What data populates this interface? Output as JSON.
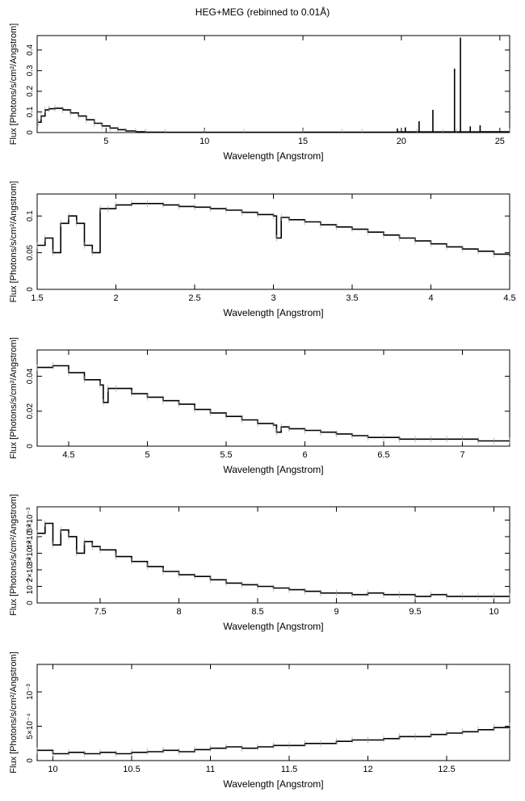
{
  "figure_title": "HEG+MEG (rebinned to 0.01Å)",
  "chart_data": [
    {
      "type": "line",
      "xlabel": "Wavelength [Angstrom]",
      "ylabel": "Flux [Photons/s/cm²/Angstrom]",
      "xlim": [
        1.5,
        25.5
      ],
      "ylim": [
        0,
        0.47
      ],
      "xticks": [
        5,
        10,
        15,
        20,
        25
      ],
      "xtick_labels": [
        "5",
        "10",
        "15",
        "20",
        "25"
      ],
      "yticks": [
        0,
        0.1,
        0.2,
        0.3,
        0.4
      ],
      "ytick_labels": [
        "0",
        "0.1",
        "0.2",
        "0.3",
        "0.4"
      ],
      "series": [
        {
          "x": [
            1.55,
            1.7,
            1.9,
            2.1,
            2.4,
            2.8,
            3.2,
            3.6,
            4.0,
            4.4,
            4.8,
            5.2,
            5.6,
            6.0,
            6.5,
            7.0,
            8.0,
            10,
            12,
            15,
            17,
            18,
            19.8,
            20.8,
            21.6,
            22.1,
            22.8,
            23.0,
            23.5,
            24.0,
            25.5
          ],
          "y": [
            0.05,
            0.08,
            0.11,
            0.115,
            0.118,
            0.11,
            0.095,
            0.08,
            0.062,
            0.045,
            0.032,
            0.022,
            0.014,
            0.008,
            0.004,
            0.002,
            0.001,
            0.001,
            0.001,
            0.002,
            0.002,
            0.002,
            0.003,
            0.003,
            0.003,
            0.003,
            0.003,
            0.003,
            0.003,
            0.004,
            0.004
          ]
        }
      ],
      "lines": [
        {
          "x": 19.8,
          "y": 0.02
        },
        {
          "x": 20.2,
          "y": 0.025
        },
        {
          "x": 20.9,
          "y": 0.055
        },
        {
          "x": 21.6,
          "y": 0.11
        },
        {
          "x": 22.7,
          "y": 0.31
        },
        {
          "x": 23.0,
          "y": 0.46
        },
        {
          "x": 23.5,
          "y": 0.03
        },
        {
          "x": 24.0,
          "y": 0.035
        }
      ]
    },
    {
      "type": "line",
      "xlabel": "Wavelength [Angstrom]",
      "ylabel": "Flux [Photons/s/cm²/Angstrom]",
      "xlim": [
        1.5,
        4.5
      ],
      "ylim": [
        0,
        0.13
      ],
      "xticks": [
        1.5,
        2,
        2.5,
        3,
        3.5,
        4,
        4.5
      ],
      "xtick_labels": [
        "1.5",
        "2",
        "2.5",
        "3",
        "3.5",
        "4",
        "4.5"
      ],
      "yticks": [
        0,
        0.05,
        0.1
      ],
      "ytick_labels": [
        "0",
        "0.05",
        "0.1"
      ],
      "series": [
        {
          "x": [
            1.5,
            1.55,
            1.6,
            1.65,
            1.7,
            1.75,
            1.8,
            1.85,
            1.9,
            1.95,
            2.0,
            2.1,
            2.2,
            2.3,
            2.4,
            2.5,
            2.6,
            2.7,
            2.8,
            2.9,
            3.0,
            3.02,
            3.05,
            3.1,
            3.2,
            3.3,
            3.4,
            3.5,
            3.6,
            3.7,
            3.8,
            3.9,
            4.0,
            4.1,
            4.2,
            4.3,
            4.4,
            4.5
          ],
          "y": [
            0.06,
            0.07,
            0.05,
            0.09,
            0.1,
            0.09,
            0.06,
            0.05,
            0.11,
            0.11,
            0.115,
            0.117,
            0.117,
            0.115,
            0.113,
            0.112,
            0.11,
            0.108,
            0.105,
            0.102,
            0.1,
            0.07,
            0.098,
            0.095,
            0.092,
            0.088,
            0.085,
            0.082,
            0.078,
            0.074,
            0.07,
            0.066,
            0.062,
            0.058,
            0.055,
            0.052,
            0.048,
            0.045
          ]
        }
      ]
    },
    {
      "type": "line",
      "xlabel": "Wavelength [Angstrom]",
      "ylabel": "Flux [Photons/s/cm²/Angstrom]",
      "xlim": [
        4.3,
        7.3
      ],
      "ylim": [
        0,
        0.055
      ],
      "xticks": [
        4.5,
        5,
        5.5,
        6,
        6.5,
        7
      ],
      "xtick_labels": [
        "4.5",
        "5",
        "5.5",
        "6",
        "6.5",
        "7"
      ],
      "yticks": [
        0,
        0.02,
        0.04
      ],
      "ytick_labels": [
        "0",
        "0.02",
        "0.04"
      ],
      "series": [
        {
          "x": [
            4.3,
            4.4,
            4.5,
            4.6,
            4.7,
            4.72,
            4.75,
            4.8,
            4.9,
            5.0,
            5.1,
            5.2,
            5.3,
            5.4,
            5.5,
            5.6,
            5.7,
            5.8,
            5.82,
            5.85,
            5.9,
            6.0,
            6.1,
            6.2,
            6.3,
            6.4,
            6.5,
            6.6,
            6.7,
            6.8,
            6.9,
            7.0,
            7.1,
            7.2,
            7.3
          ],
          "y": [
            0.045,
            0.046,
            0.042,
            0.038,
            0.035,
            0.025,
            0.033,
            0.033,
            0.03,
            0.028,
            0.026,
            0.024,
            0.021,
            0.019,
            0.017,
            0.015,
            0.013,
            0.012,
            0.008,
            0.011,
            0.01,
            0.009,
            0.008,
            0.007,
            0.006,
            0.005,
            0.005,
            0.004,
            0.004,
            0.004,
            0.004,
            0.004,
            0.003,
            0.003,
            0.003
          ]
        }
      ]
    },
    {
      "type": "line",
      "xlabel": "Wavelength [Angstrom]",
      "ylabel": "Flux [Photons/s/cm²/Angstrom]",
      "xlim": [
        7.1,
        10.1
      ],
      "ylim": [
        0,
        0.0058
      ],
      "xticks": [
        7.5,
        8,
        8.5,
        9,
        9.5,
        10
      ],
      "xtick_labels": [
        "7.5",
        "8",
        "8.5",
        "9",
        "9.5",
        "10"
      ],
      "yticks": [
        0,
        0.001,
        0.002,
        0.003,
        0.004,
        0.005
      ],
      "ytick_labels": [
        "0",
        "10⁻³",
        "2×10⁻³",
        "3×10⁻³",
        "4×10⁻³",
        "5×10⁻³"
      ],
      "series": [
        {
          "x": [
            7.1,
            7.15,
            7.2,
            7.25,
            7.3,
            7.35,
            7.4,
            7.45,
            7.5,
            7.6,
            7.7,
            7.8,
            7.9,
            8.0,
            8.1,
            8.2,
            8.3,
            8.4,
            8.5,
            8.6,
            8.7,
            8.8,
            8.9,
            9.0,
            9.1,
            9.2,
            9.3,
            9.4,
            9.5,
            9.6,
            9.7,
            9.8,
            9.9,
            10.0,
            10.1
          ],
          "y": [
            0.0042,
            0.0048,
            0.0035,
            0.0044,
            0.004,
            0.003,
            0.0037,
            0.0034,
            0.0032,
            0.0028,
            0.0025,
            0.0022,
            0.0019,
            0.0017,
            0.0016,
            0.0014,
            0.0012,
            0.0011,
            0.001,
            0.0009,
            0.0008,
            0.0007,
            0.0006,
            0.0006,
            0.0005,
            0.0006,
            0.0005,
            0.0005,
            0.0004,
            0.0005,
            0.0004,
            0.0004,
            0.0004,
            0.0004,
            0.0004
          ]
        }
      ]
    },
    {
      "type": "line",
      "xlabel": "Wavelength [Angstrom]",
      "ylabel": "Flux [Photons/s/cm²/Angstrom]",
      "xlim": [
        9.9,
        12.9
      ],
      "ylim": [
        0,
        0.0014
      ],
      "xticks": [
        10,
        10.5,
        11,
        11.5,
        12,
        12.5
      ],
      "xtick_labels": [
        "10",
        "10.5",
        "11",
        "11.5",
        "12",
        "12.5"
      ],
      "yticks": [
        0,
        0.0005,
        0.001
      ],
      "ytick_labels": [
        "0",
        "5×10⁻⁴",
        "10⁻³"
      ],
      "series": [
        {
          "x": [
            9.9,
            10.0,
            10.1,
            10.2,
            10.3,
            10.4,
            10.5,
            10.6,
            10.7,
            10.8,
            10.9,
            11.0,
            11.1,
            11.2,
            11.3,
            11.4,
            11.5,
            11.6,
            11.7,
            11.8,
            11.9,
            12.0,
            12.1,
            12.2,
            12.3,
            12.4,
            12.5,
            12.6,
            12.7,
            12.8,
            12.9
          ],
          "y": [
            0.00015,
            0.0001,
            0.00012,
            0.0001,
            0.00012,
            0.0001,
            0.00012,
            0.00013,
            0.00015,
            0.00013,
            0.00016,
            0.00018,
            0.0002,
            0.00018,
            0.0002,
            0.00022,
            0.00022,
            0.00025,
            0.00025,
            0.00028,
            0.0003,
            0.0003,
            0.00032,
            0.00035,
            0.00035,
            0.00038,
            0.0004,
            0.00042,
            0.00045,
            0.00048,
            0.0005
          ]
        }
      ]
    }
  ]
}
